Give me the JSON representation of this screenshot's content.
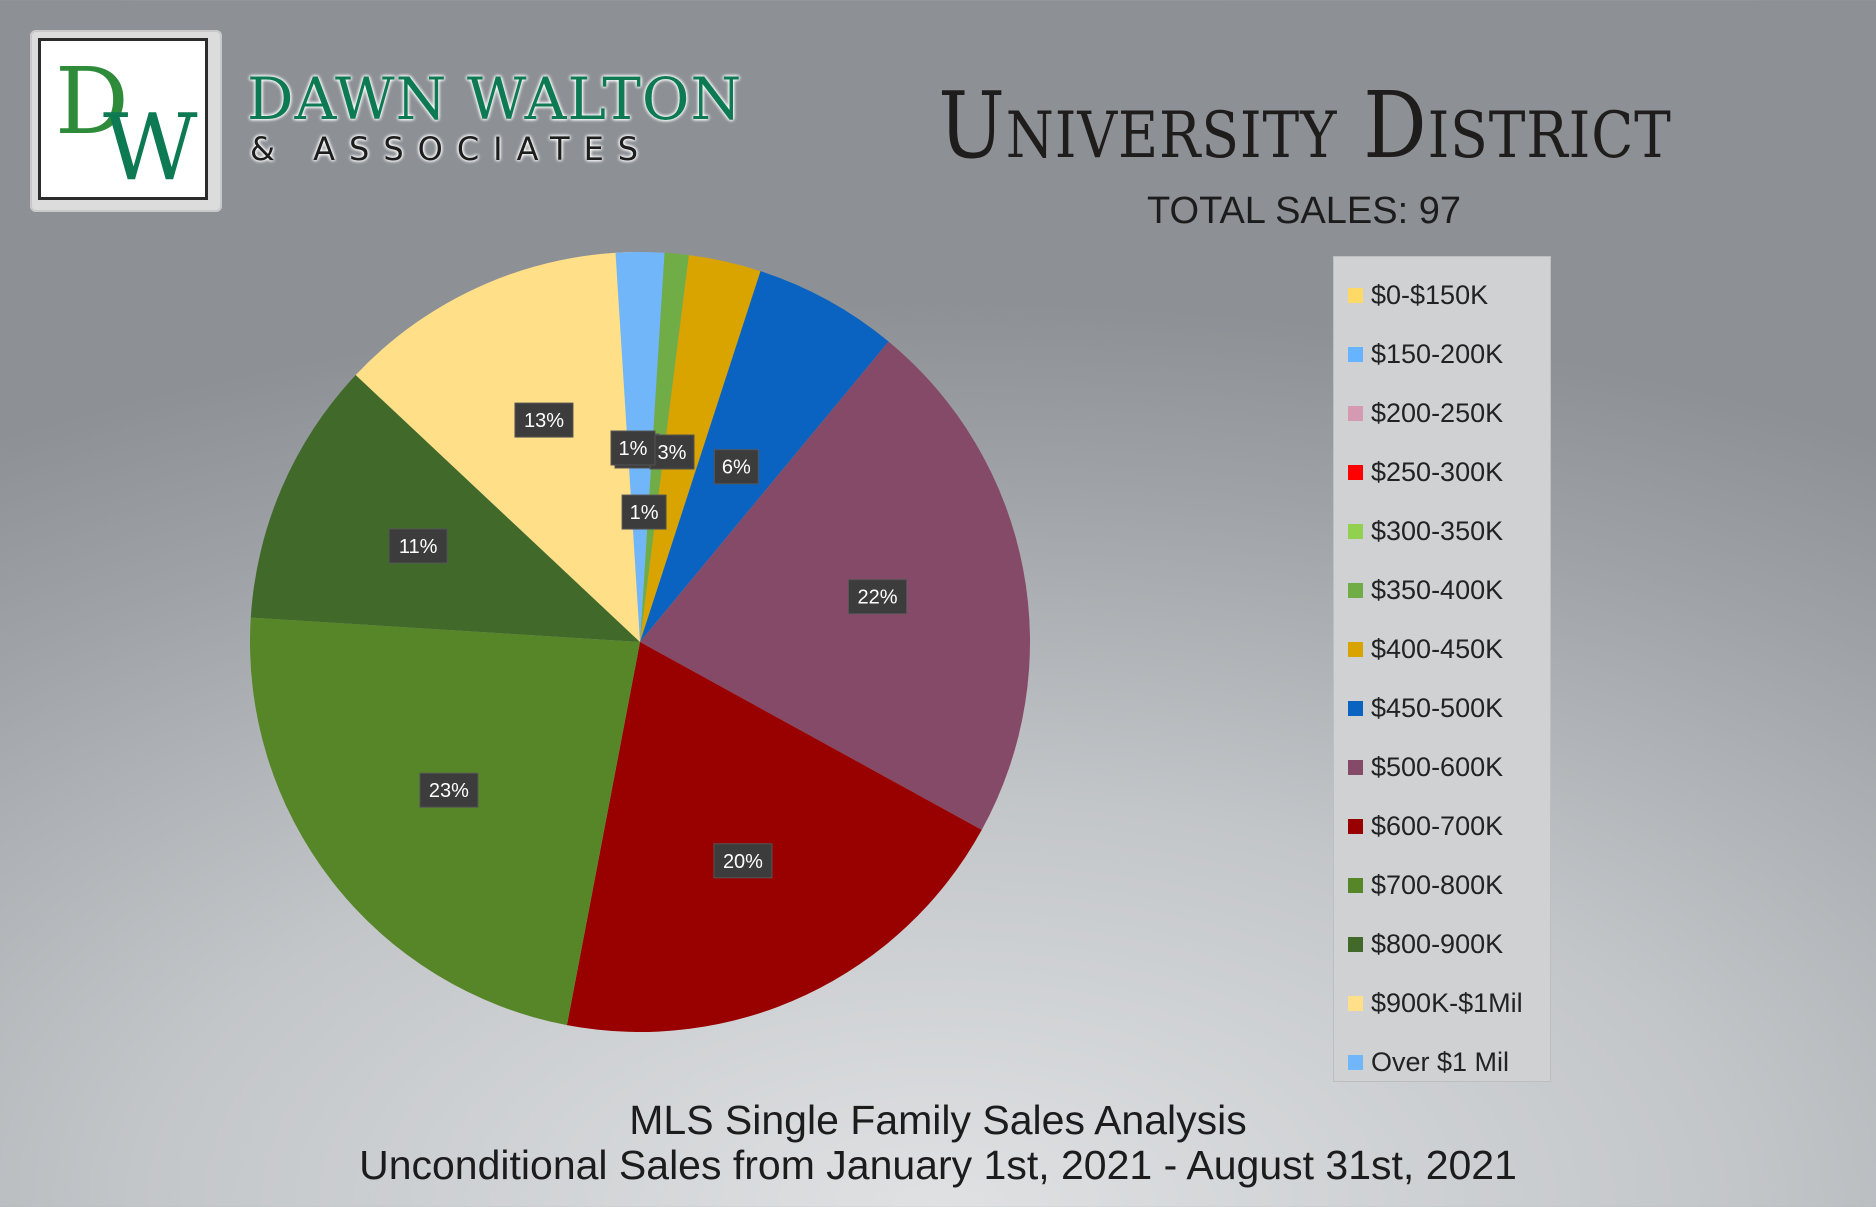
{
  "brand": {
    "monogram": "DW",
    "name": "DAWN WALTON",
    "sub": "& ASSOCIATES"
  },
  "header": {
    "title": "University District",
    "total_sales": "TOTAL SALES: 97"
  },
  "footer": {
    "line1": "MLS Single Family Sales Analysis",
    "line2": "Unconditional Sales from January 1st, 2021 - August 31st, 2021"
  },
  "chart_data": {
    "type": "pie",
    "title": "University District",
    "subtitle": "TOTAL SALES: 97",
    "legend_position": "right",
    "slices": [
      {
        "label": "$0-$150K",
        "value": 0,
        "color": "#ffd966"
      },
      {
        "label": "$150-200K",
        "value": 0,
        "color": "#66b3ff"
      },
      {
        "label": "$200-250K",
        "value": 0,
        "color": "#d59ab2"
      },
      {
        "label": "$250-300K",
        "value": 0,
        "color": "#ff0000"
      },
      {
        "label": "$300-350K",
        "value": 0,
        "color": "#92d050"
      },
      {
        "label": "$350-400K",
        "value": 1,
        "color": "#70ad47",
        "display": "1%"
      },
      {
        "label": "$400-450K",
        "value": 3,
        "color": "#d9a300",
        "display": "3%"
      },
      {
        "label": "$450-500K",
        "value": 6,
        "color": "#0a63c0",
        "display": "6%"
      },
      {
        "label": "$500-600K",
        "value": 22,
        "color": "#854a68",
        "display": "22%"
      },
      {
        "label": "$600-700K",
        "value": 20,
        "color": "#990000",
        "display": "20%"
      },
      {
        "label": "$700-800K",
        "value": 23,
        "color": "#578628",
        "display": "23%"
      },
      {
        "label": "$800-900K",
        "value": 11,
        "color": "#41692a",
        "display": "11%"
      },
      {
        "label": "$900K-$1Mil",
        "value": 13,
        "color": "#ffdf88",
        "display": "13%"
      },
      {
        "label": "Over $1 Mil",
        "value": 1,
        "color": "#72b6fa",
        "display": "1%"
      }
    ]
  }
}
